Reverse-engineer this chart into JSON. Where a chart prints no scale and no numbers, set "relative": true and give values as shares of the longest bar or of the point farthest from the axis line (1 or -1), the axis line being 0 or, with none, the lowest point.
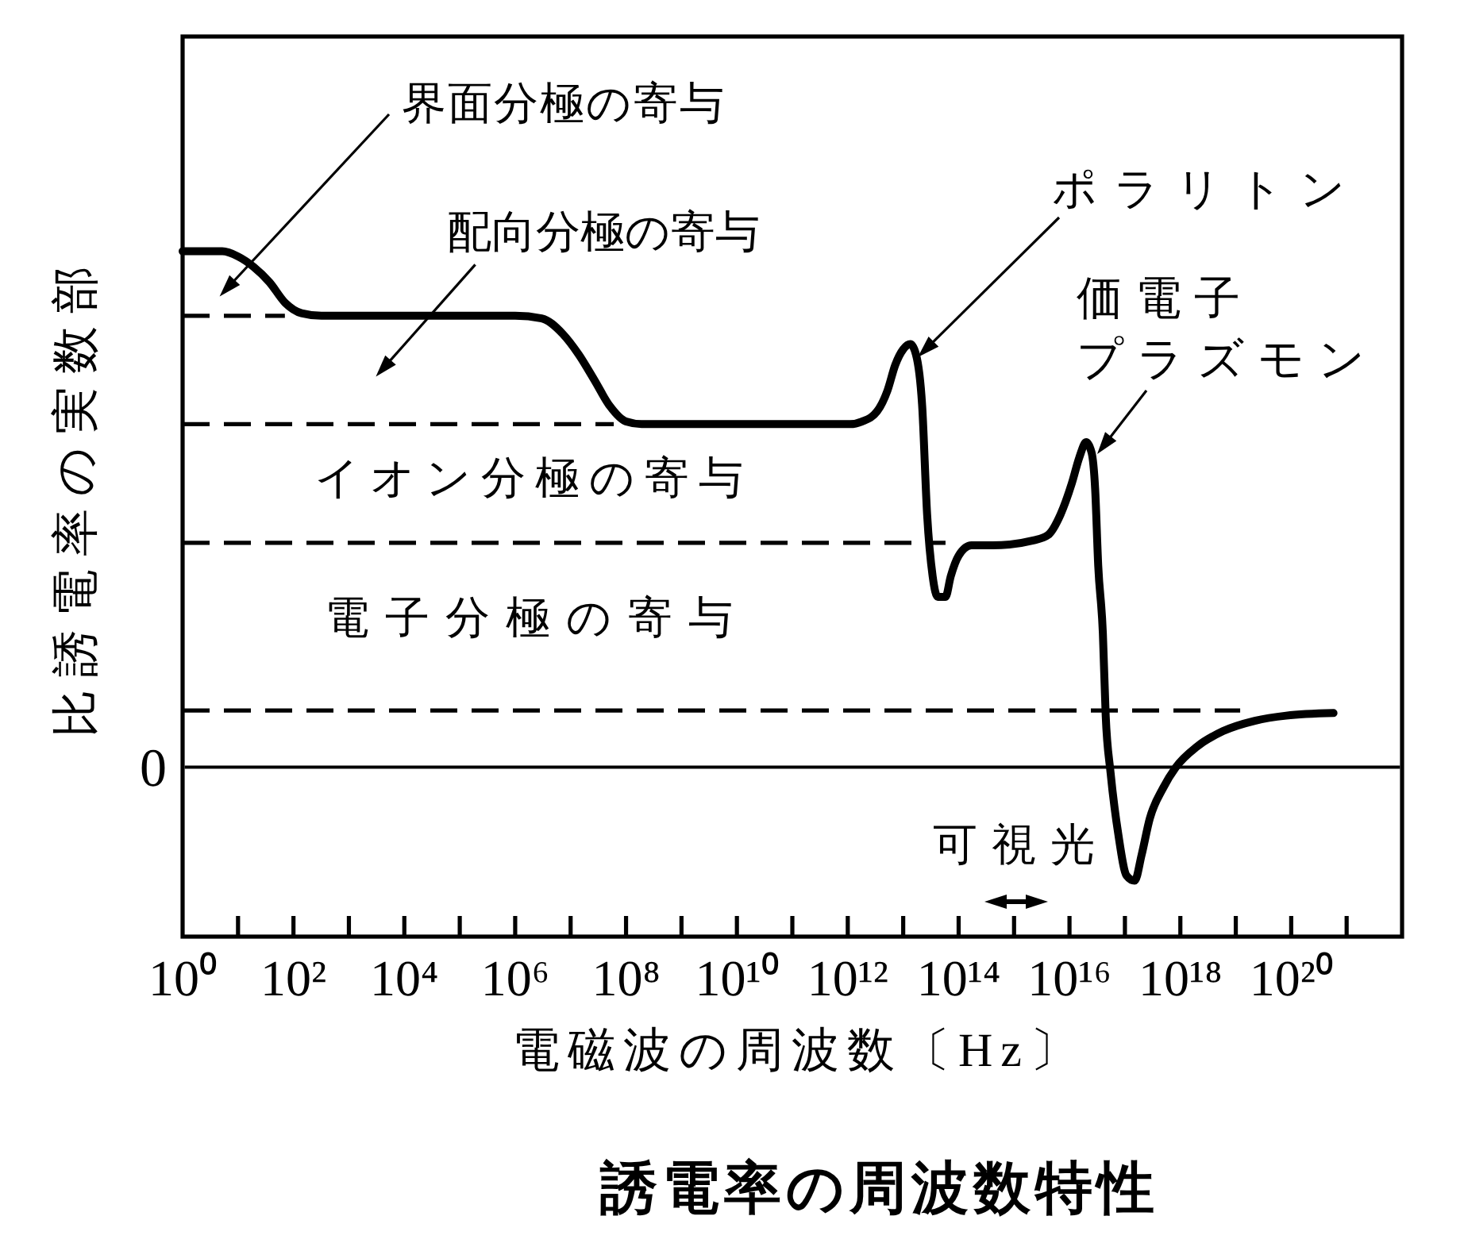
{
  "chart_data": {
    "type": "line",
    "relative": true,
    "title": "誘電率の周波数特性",
    "xlabel": "電磁波の周波数〔Hz〕",
    "ylabel": "比誘電率の実数部",
    "log": "x",
    "xlim": [
      1,
      1e+22
    ],
    "xticks": [
      {
        "value": 1,
        "label": "10⁰"
      },
      {
        "value": 100.0,
        "label": "10²"
      },
      {
        "value": 10000.0,
        "label": "10⁴"
      },
      {
        "value": 1000000.0,
        "label": "10⁶"
      },
      {
        "value": 100000000.0,
        "label": "10⁸"
      },
      {
        "value": 10000000000.0,
        "label": "10¹⁰"
      },
      {
        "value": 1000000000000.0,
        "label": "10¹²"
      },
      {
        "value": 100000000000000.0,
        "label": "10¹⁴"
      },
      {
        "value": 1e+16,
        "label": "10¹⁶"
      },
      {
        "value": 1e+18,
        "label": "10¹⁸"
      },
      {
        "value": 1e+20,
        "label": "10²⁰"
      }
    ],
    "series": [
      {
        "color": "#000000",
        "x": [
          1,
          5.2,
          10.0,
          19.0,
          37.0,
          71.0,
          140.0,
          320.0,
          1000000.0,
          3000000.0,
          7200000.0,
          14000000.0,
          27000000.0,
          51000000.0,
          100000000.0,
          190000000.0,
          1100000000000.0,
          1800000000000.0,
          3400000000000.0,
          5200000000000.0,
          7200000000000.0,
          10000000000000.0,
          13500000000000.0,
          17000000000000.0,
          22000000000000.0,
          27000000000000.0,
          34000000000000.0,
          42000000000000.0,
          58000000000000.0,
          72000000000000.0,
          100000000000000.0,
          170000000000000.0,
          410000000000000.0,
          2300000000000000.0,
          4100000000000000.0,
          6900000000000000.0,
          1.1e+16,
          1.5e+16,
          2e+16,
          2.5e+16,
          2.9e+16,
          3.3e+16,
          4e+16,
          4.5e+16,
          5.5e+16,
          7.6e+16,
          1.07e+17,
          1.5e+17,
          2e+17,
          2.8e+17,
          4.9e+17,
          8.3e+17,
          2e+18,
          5.9e+18,
          2.2e+19,
          8.1e+19,
          5.8e+20
        ],
        "values": [
          1.0,
          1.0,
          0.99,
          0.97,
          0.94,
          0.9,
          0.88,
          0.875,
          0.875,
          0.87,
          0.84,
          0.8,
          0.75,
          0.7,
          0.67,
          0.665,
          0.665,
          0.67,
          0.69,
          0.73,
          0.78,
          0.81,
          0.82,
          0.8,
          0.7,
          0.49,
          0.37,
          0.33,
          0.33,
          0.37,
          0.41,
          0.43,
          0.43,
          0.44,
          0.45,
          0.49,
          0.55,
          0.6,
          0.63,
          0.61,
          0.54,
          0.39,
          0.26,
          0.1,
          -0.01,
          -0.13,
          -0.21,
          -0.22,
          -0.17,
          -0.1,
          -0.04,
          0.0,
          0.04,
          0.07,
          0.09,
          0.1,
          0.105
        ]
      },
      {
        "color": "#000000",
        "line_style": "dashed",
        "x": [
          1,
          70.0
        ],
        "values": [
          0.875,
          0.875
        ]
      },
      {
        "color": "#000000",
        "line_style": "dashed",
        "x": [
          1,
          60000000.0
        ],
        "values": [
          0.665,
          0.665
        ]
      },
      {
        "color": "#000000",
        "line_style": "dashed",
        "x": [
          1,
          58000000000000.0
        ],
        "values": [
          0.435,
          0.435
        ]
      },
      {
        "color": "#000000",
        "line_style": "dashed",
        "x": [
          1,
          1.2e+19
        ],
        "values": [
          0.11,
          0.11
        ]
      }
    ],
    "ref_lines": [
      {
        "axis": "y",
        "value": 0,
        "label": "0"
      }
    ],
    "annotations": [
      "界面分極の寄与",
      "配向分極の寄与",
      "イオン分極の寄与",
      "電子分極の寄与",
      "ポラリトン",
      "価電子プラズモン",
      "可視光"
    ]
  }
}
